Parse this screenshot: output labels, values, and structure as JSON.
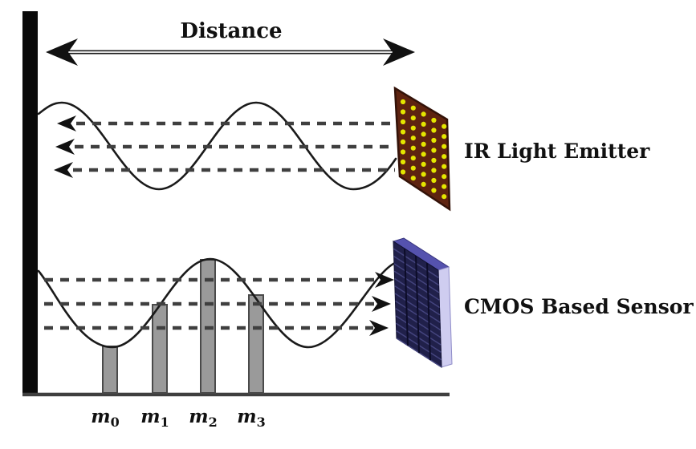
{
  "figure": {
    "distance_label": "Distance",
    "emitter_label": "IR Light Emitter",
    "sensor_label": "CMOS Based Sensor",
    "sample_labels": [
      {
        "base": "m",
        "sub": "0"
      },
      {
        "base": "m",
        "sub": "1"
      },
      {
        "base": "m",
        "sub": "2"
      },
      {
        "base": "m",
        "sub": "3"
      }
    ],
    "colors": {
      "background": "#ffffff",
      "line": "#1a1a1a",
      "dashed_ray": "#3f3f3f",
      "wall": "#0a0a0a",
      "baseline": "#3f3f3f",
      "emitter_body": "#5e2310",
      "emitter_border": "#331208",
      "led": "#e4e600",
      "sensor_front": "#20204a",
      "sensor_top": "#5552ae",
      "sensor_side": "#cfcdf0",
      "sensor_ridge": "#44447e",
      "bar_fill": "#9a9a9a",
      "bar_border": "#4a4a4a"
    }
  }
}
